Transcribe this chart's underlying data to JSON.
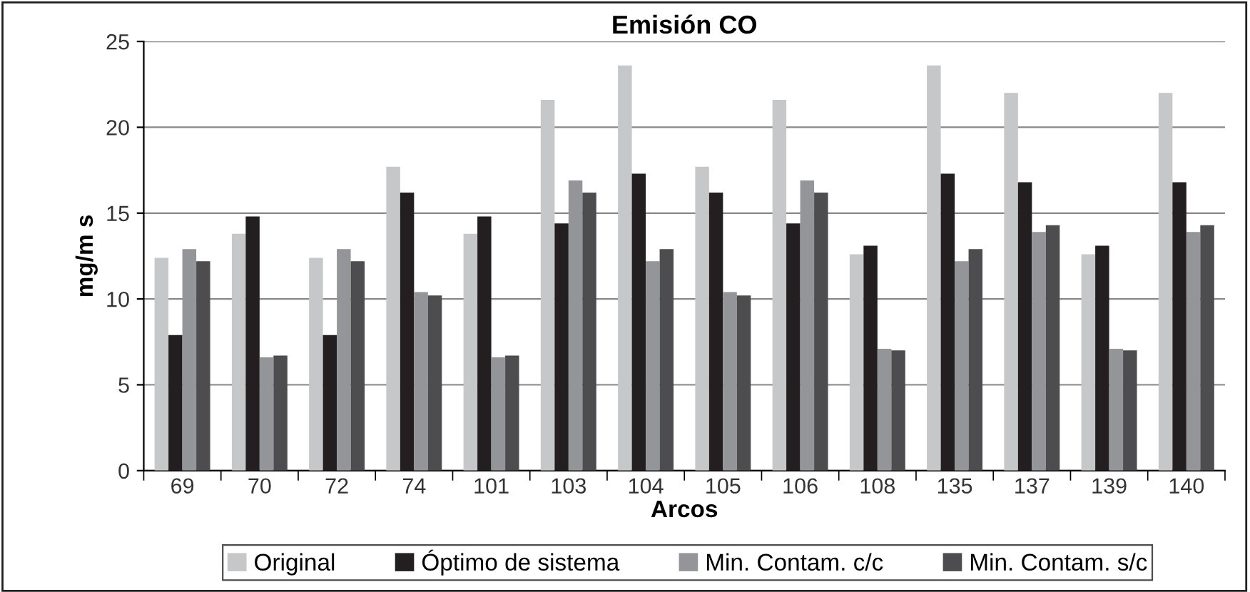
{
  "chart_data": {
    "type": "bar",
    "title": "Emisión CO",
    "xlabel": "Arcos",
    "ylabel": "mg/m s",
    "categories": [
      "69",
      "70",
      "72",
      "74",
      "101",
      "103",
      "104",
      "105",
      "106",
      "108",
      "135",
      "137",
      "139",
      "140"
    ],
    "series": [
      {
        "name": "Original",
        "color": "#c6c7c9",
        "values": [
          12.4,
          13.8,
          12.4,
          17.7,
          13.8,
          21.6,
          23.6,
          17.7,
          21.6,
          12.6,
          23.6,
          22.0,
          12.6,
          22.0
        ]
      },
      {
        "name": "Óptimo de sistema",
        "color": "#231f20",
        "values": [
          7.9,
          14.8,
          7.9,
          16.2,
          14.8,
          14.4,
          17.3,
          16.2,
          14.4,
          13.1,
          17.3,
          16.8,
          13.1,
          16.8
        ]
      },
      {
        "name": "Min. Contam. c/c",
        "color": "#939598",
        "values": [
          12.9,
          6.6,
          12.9,
          10.4,
          6.6,
          16.9,
          12.2,
          10.4,
          16.9,
          7.1,
          12.2,
          13.9,
          7.1,
          13.9
        ]
      },
      {
        "name": "Min. Contam. s/c",
        "color": "#4d4d4f",
        "values": [
          12.2,
          6.7,
          12.2,
          10.2,
          6.7,
          16.2,
          12.9,
          10.2,
          16.2,
          7.0,
          12.9,
          14.3,
          7.0,
          14.3
        ]
      }
    ],
    "ylim": [
      0,
      25
    ],
    "yticks": [
      0,
      5,
      10,
      15,
      20,
      25
    ],
    "grid": "y",
    "legend": "bottom"
  }
}
